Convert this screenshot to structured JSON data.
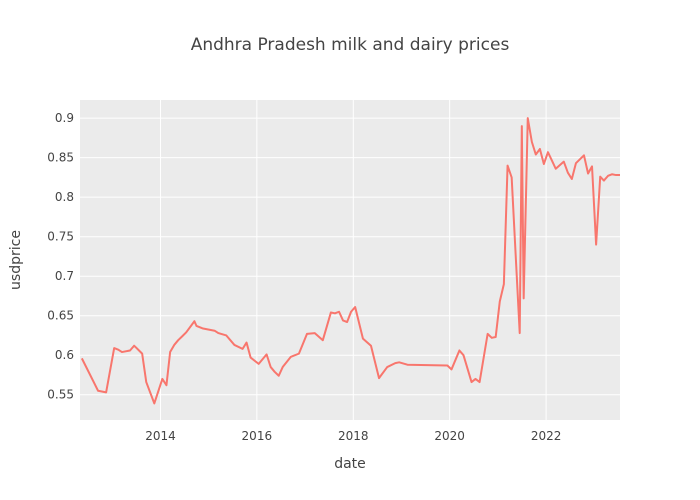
{
  "chart_data": {
    "type": "line",
    "title": "Andhra Pradesh milk and dairy prices",
    "xlabel": "date",
    "ylabel": "usdprice",
    "xlim": [
      "2012-05-01",
      "2023-07-15"
    ],
    "ylim": [
      0.518,
      0.923
    ],
    "grid": true,
    "x_ticks": [
      "2014",
      "2016",
      "2018",
      "2020",
      "2022"
    ],
    "y_ticks": [
      0.55,
      0.6,
      0.65,
      0.7,
      0.75,
      0.8,
      0.85,
      0.9
    ],
    "y_tick_labels": [
      "0.55",
      "0.6",
      "0.65",
      "0.7",
      "0.75",
      "0.8",
      "0.85",
      "0.9"
    ],
    "line_color": "#F8766D",
    "plot_bg": "#EBEBEB",
    "series": [
      {
        "x": [
          "2012-05-15",
          "2012-09-15",
          "2012-11-15",
          "2013-01-15",
          "2013-02-15",
          "2013-03-15",
          "2013-05-15",
          "2013-06-15",
          "2013-06-28",
          "2013-08-15",
          "2013-09-15",
          "2013-11-15",
          "2014-01-15",
          "2014-02-15",
          "2014-03-15",
          "2014-04-15",
          "2014-05-15",
          "2014-06-15",
          "2014-07-15",
          "2014-09-15",
          "2014-10-01",
          "2014-11-15",
          "2015-02-15",
          "2015-03-15",
          "2015-05-15",
          "2015-07-15",
          "2015-09-15",
          "2015-10-15",
          "2015-11-15",
          "2016-01-15",
          "2016-03-15",
          "2016-04-15",
          "2016-05-15",
          "2016-06-15",
          "2016-07-15",
          "2016-09-15",
          "2016-11-15",
          "2017-01-15",
          "2017-03-15",
          "2017-05-15",
          "2017-07-15",
          "2017-08-15",
          "2017-09-15",
          "2017-10-15",
          "2017-11-15",
          "2017-12-15",
          "2018-01-15",
          "2018-03-15",
          "2018-05-15",
          "2018-07-15",
          "2018-09-15",
          "2018-11-15",
          "2018-12-15",
          "2019-02-15",
          "2019-12-15",
          "2020-01-15",
          "2020-03-15",
          "2020-04-15",
          "2020-06-15",
          "2020-07-15",
          "2020-08-15",
          "2020-10-15",
          "2020-11-15",
          "2020-12-15",
          "2021-01-15",
          "2021-02-15",
          "2021-03-15",
          "2021-04-15",
          "2021-06-15",
          "2021-07-01",
          "2021-07-15",
          "2021-08-15",
          "2021-09-15",
          "2021-10-15",
          "2021-11-15",
          "2021-12-15",
          "2022-01-15",
          "2022-02-15",
          "2022-03-15",
          "2022-05-15",
          "2022-06-15",
          "2022-07-15",
          "2022-08-15",
          "2022-10-15",
          "2022-11-15",
          "2022-12-15",
          "2023-01-15",
          "2023-02-15",
          "2023-03-15",
          "2023-04-15",
          "2023-05-15",
          "2023-06-15",
          "2023-07-15"
        ],
        "y": [
          0.596,
          0.555,
          0.553,
          0.609,
          0.607,
          0.604,
          0.606,
          0.612,
          0.61,
          0.602,
          0.566,
          0.539,
          0.57,
          0.562,
          0.604,
          0.613,
          0.619,
          0.624,
          0.629,
          0.643,
          0.637,
          0.634,
          0.631,
          0.628,
          0.625,
          0.613,
          0.608,
          0.616,
          0.597,
          0.589,
          0.601,
          0.585,
          0.579,
          0.574,
          0.585,
          0.598,
          0.602,
          0.627,
          0.628,
          0.619,
          0.654,
          0.653,
          0.655,
          0.644,
          0.642,
          0.655,
          0.661,
          0.621,
          0.612,
          0.571,
          0.585,
          0.59,
          0.591,
          0.588,
          0.587,
          0.582,
          0.606,
          0.6,
          0.566,
          0.57,
          0.566,
          0.627,
          0.622,
          0.623,
          0.668,
          0.69,
          0.84,
          0.825,
          0.628,
          0.89,
          0.672,
          0.9,
          0.87,
          0.854,
          0.861,
          0.842,
          0.857,
          0.846,
          0.836,
          0.845,
          0.831,
          0.823,
          0.843,
          0.853,
          0.83,
          0.839,
          0.74,
          0.826,
          0.821,
          0.827,
          0.829,
          0.828,
          0.828
        ]
      }
    ]
  }
}
